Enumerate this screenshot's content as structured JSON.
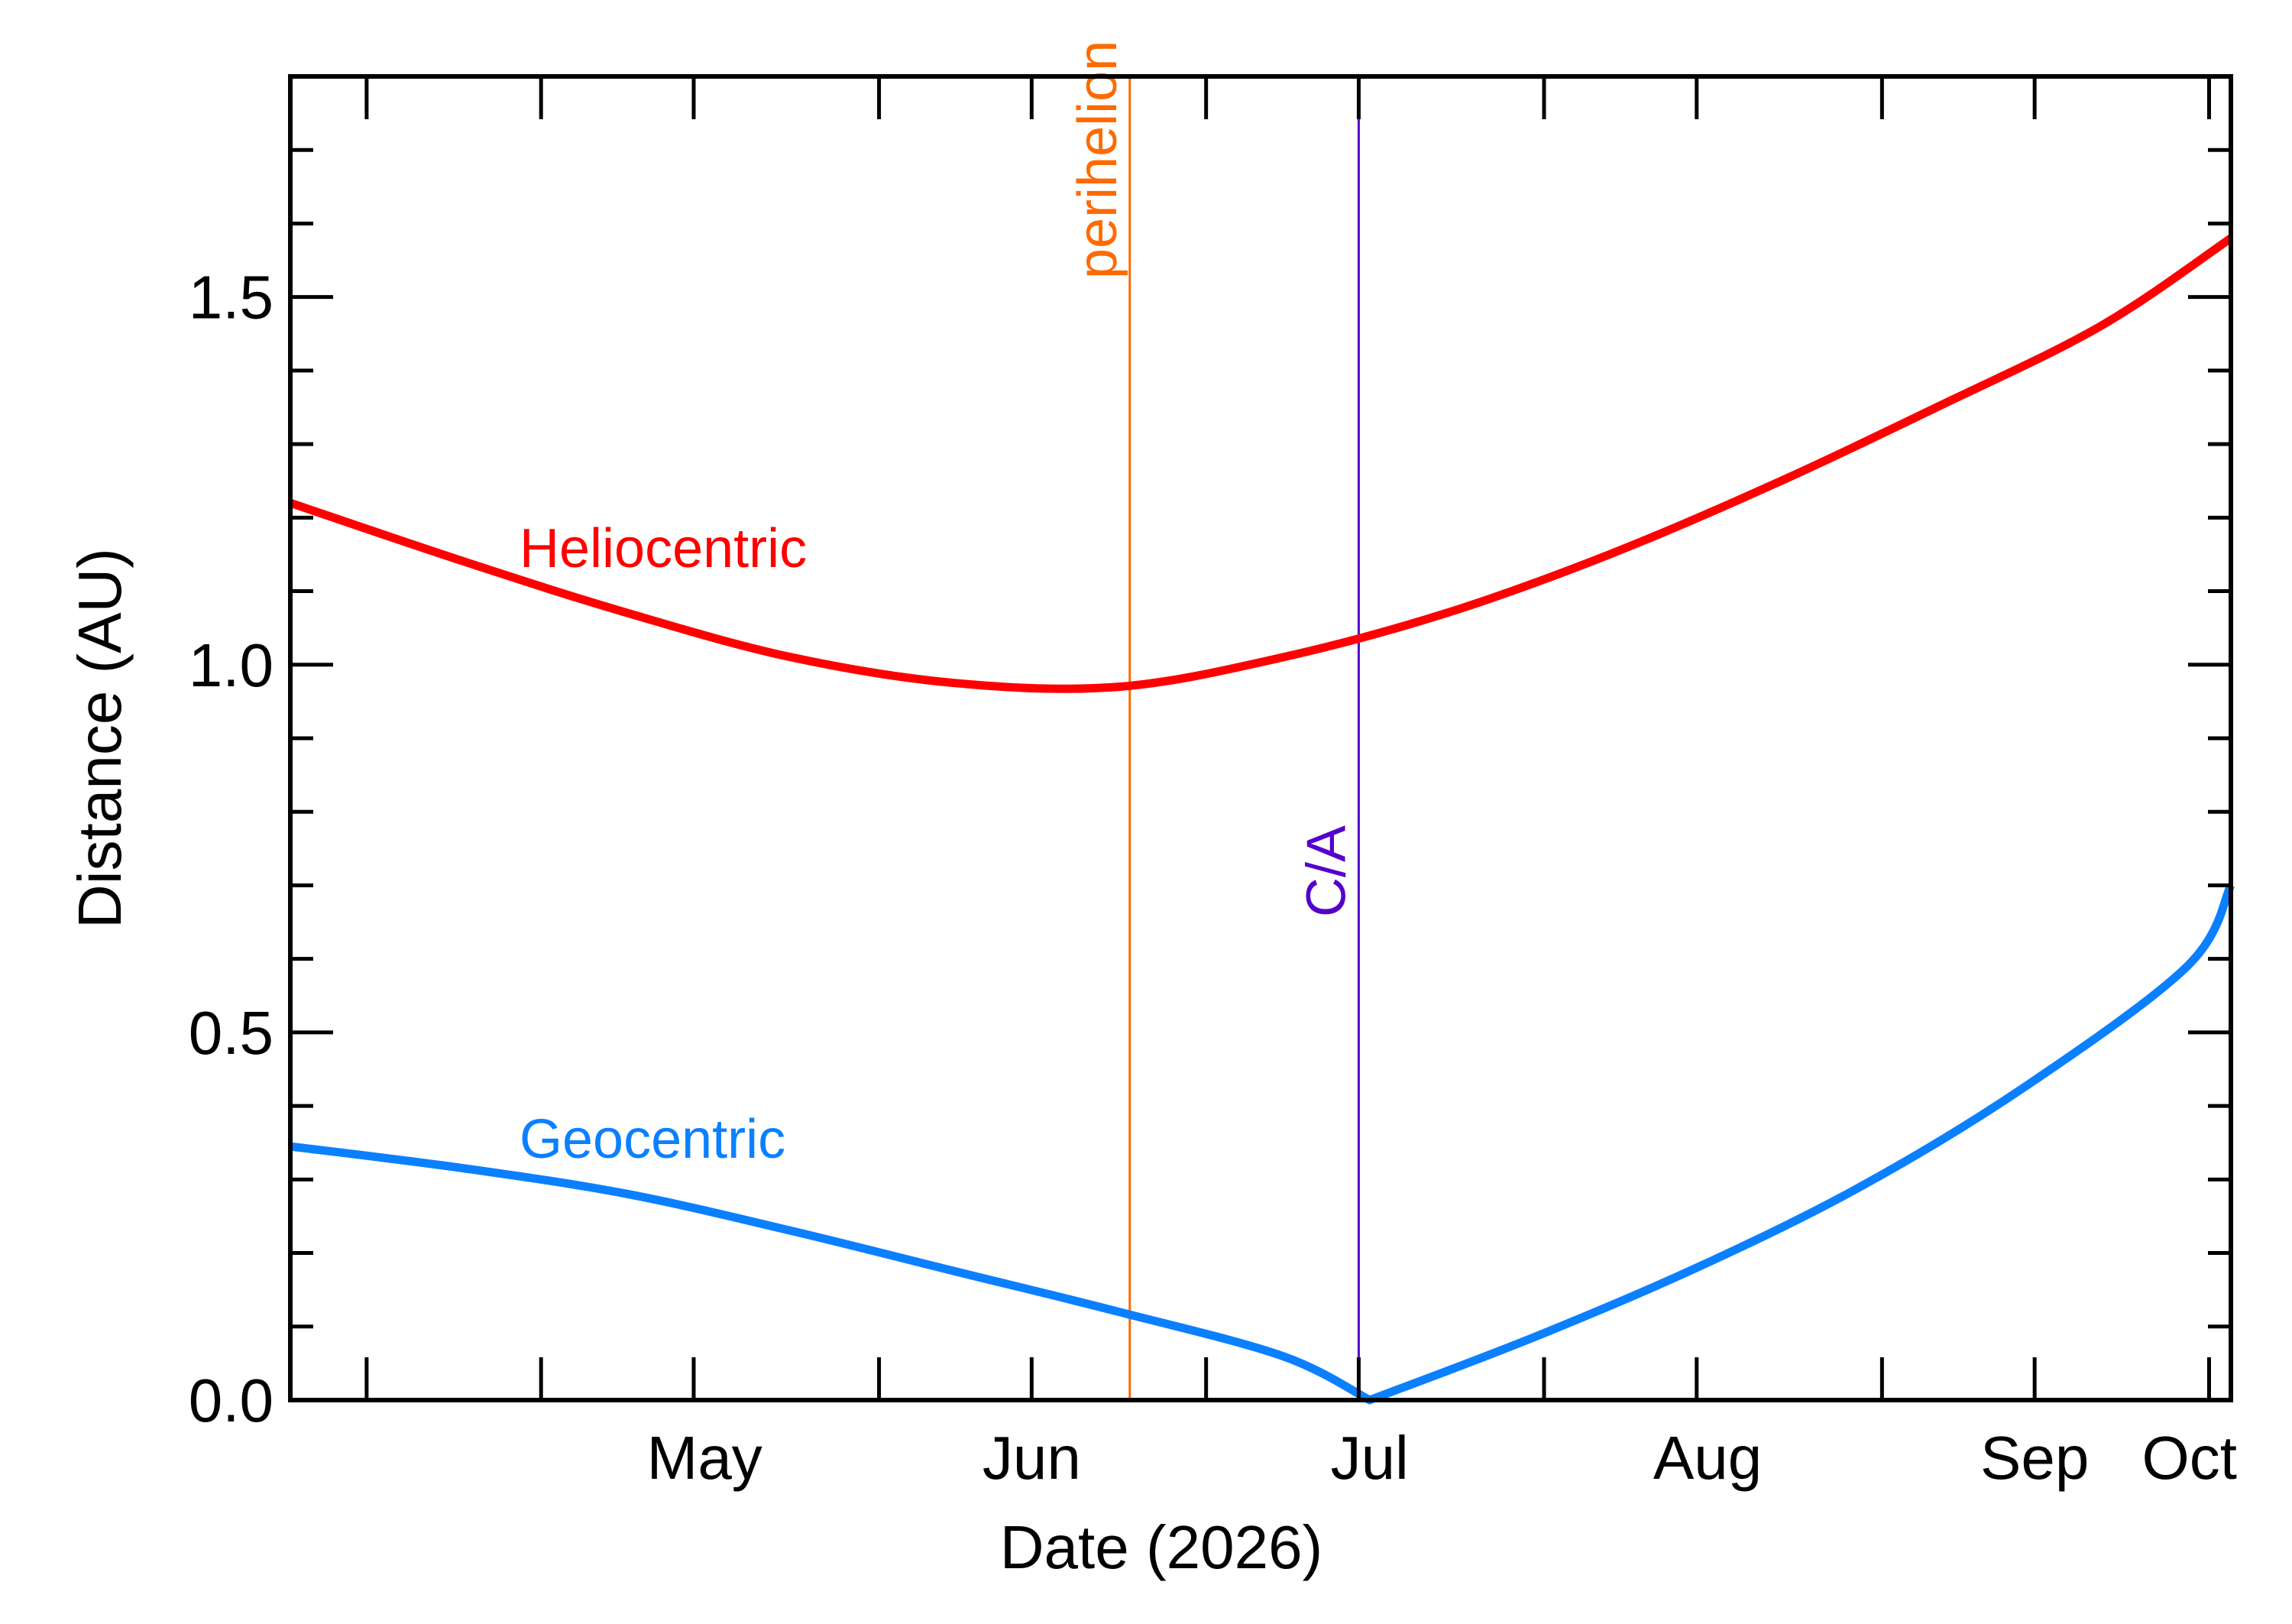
{
  "chart_data": {
    "type": "line",
    "xlabel": "Date (2026)",
    "ylabel": "Distance (AU)",
    "xlim": [
      "2026-04-08",
      "2026-10-03"
    ],
    "ylim": [
      0.0,
      1.8
    ],
    "x_ticks": [
      {
        "label": "May",
        "date": "2026-05-01"
      },
      {
        "label": "Jun",
        "date": "2026-06-01"
      },
      {
        "label": "Jul",
        "date": "2026-07-01"
      },
      {
        "label": "Aug",
        "date": "2026-08-01"
      },
      {
        "label": "Sep",
        "date": "2026-09-01"
      },
      {
        "label": "Oct",
        "date": "2026-10-01"
      }
    ],
    "y_ticks": [
      {
        "label": "0.0",
        "value": 0.0
      },
      {
        "label": "0.5",
        "value": 0.5
      },
      {
        "label": "1.0",
        "value": 1.0
      },
      {
        "label": "1.5",
        "value": 1.5
      }
    ],
    "series": [
      {
        "name": "Heliocentric",
        "color": "#ff0000",
        "x": [
          "2026-04-08",
          "2026-04-24",
          "2026-05-09",
          "2026-05-24",
          "2026-06-08",
          "2026-06-23",
          "2026-07-08",
          "2026-07-23",
          "2026-08-07",
          "2026-08-22",
          "2026-09-06",
          "2026-09-21",
          "2026-10-03"
        ],
        "y": [
          1.22,
          1.14,
          1.07,
          1.01,
          0.975,
          0.97,
          1.01,
          1.07,
          1.15,
          1.245,
          1.35,
          1.46,
          1.58
        ]
      },
      {
        "name": "Geocentric",
        "color": "#0a80ff",
        "x": [
          "2026-04-08",
          "2026-04-24",
          "2026-05-09",
          "2026-05-24",
          "2026-06-08",
          "2026-06-23",
          "2026-07-08",
          "2026-07-16",
          "2026-07-31",
          "2026-08-15",
          "2026-08-30",
          "2026-09-14",
          "2026-09-29",
          "2026-10-03"
        ],
        "y": [
          0.345,
          0.315,
          0.28,
          0.23,
          0.175,
          0.12,
          0.06,
          0.0,
          0.085,
          0.18,
          0.29,
          0.425,
          0.59,
          0.7
        ]
      }
    ],
    "markers": [
      {
        "label": "perihelion",
        "date": "2026-06-24",
        "color": "#ff6a00"
      },
      {
        "label": "C/A",
        "date": "2026-07-15",
        "color": "#5500cc"
      }
    ]
  }
}
